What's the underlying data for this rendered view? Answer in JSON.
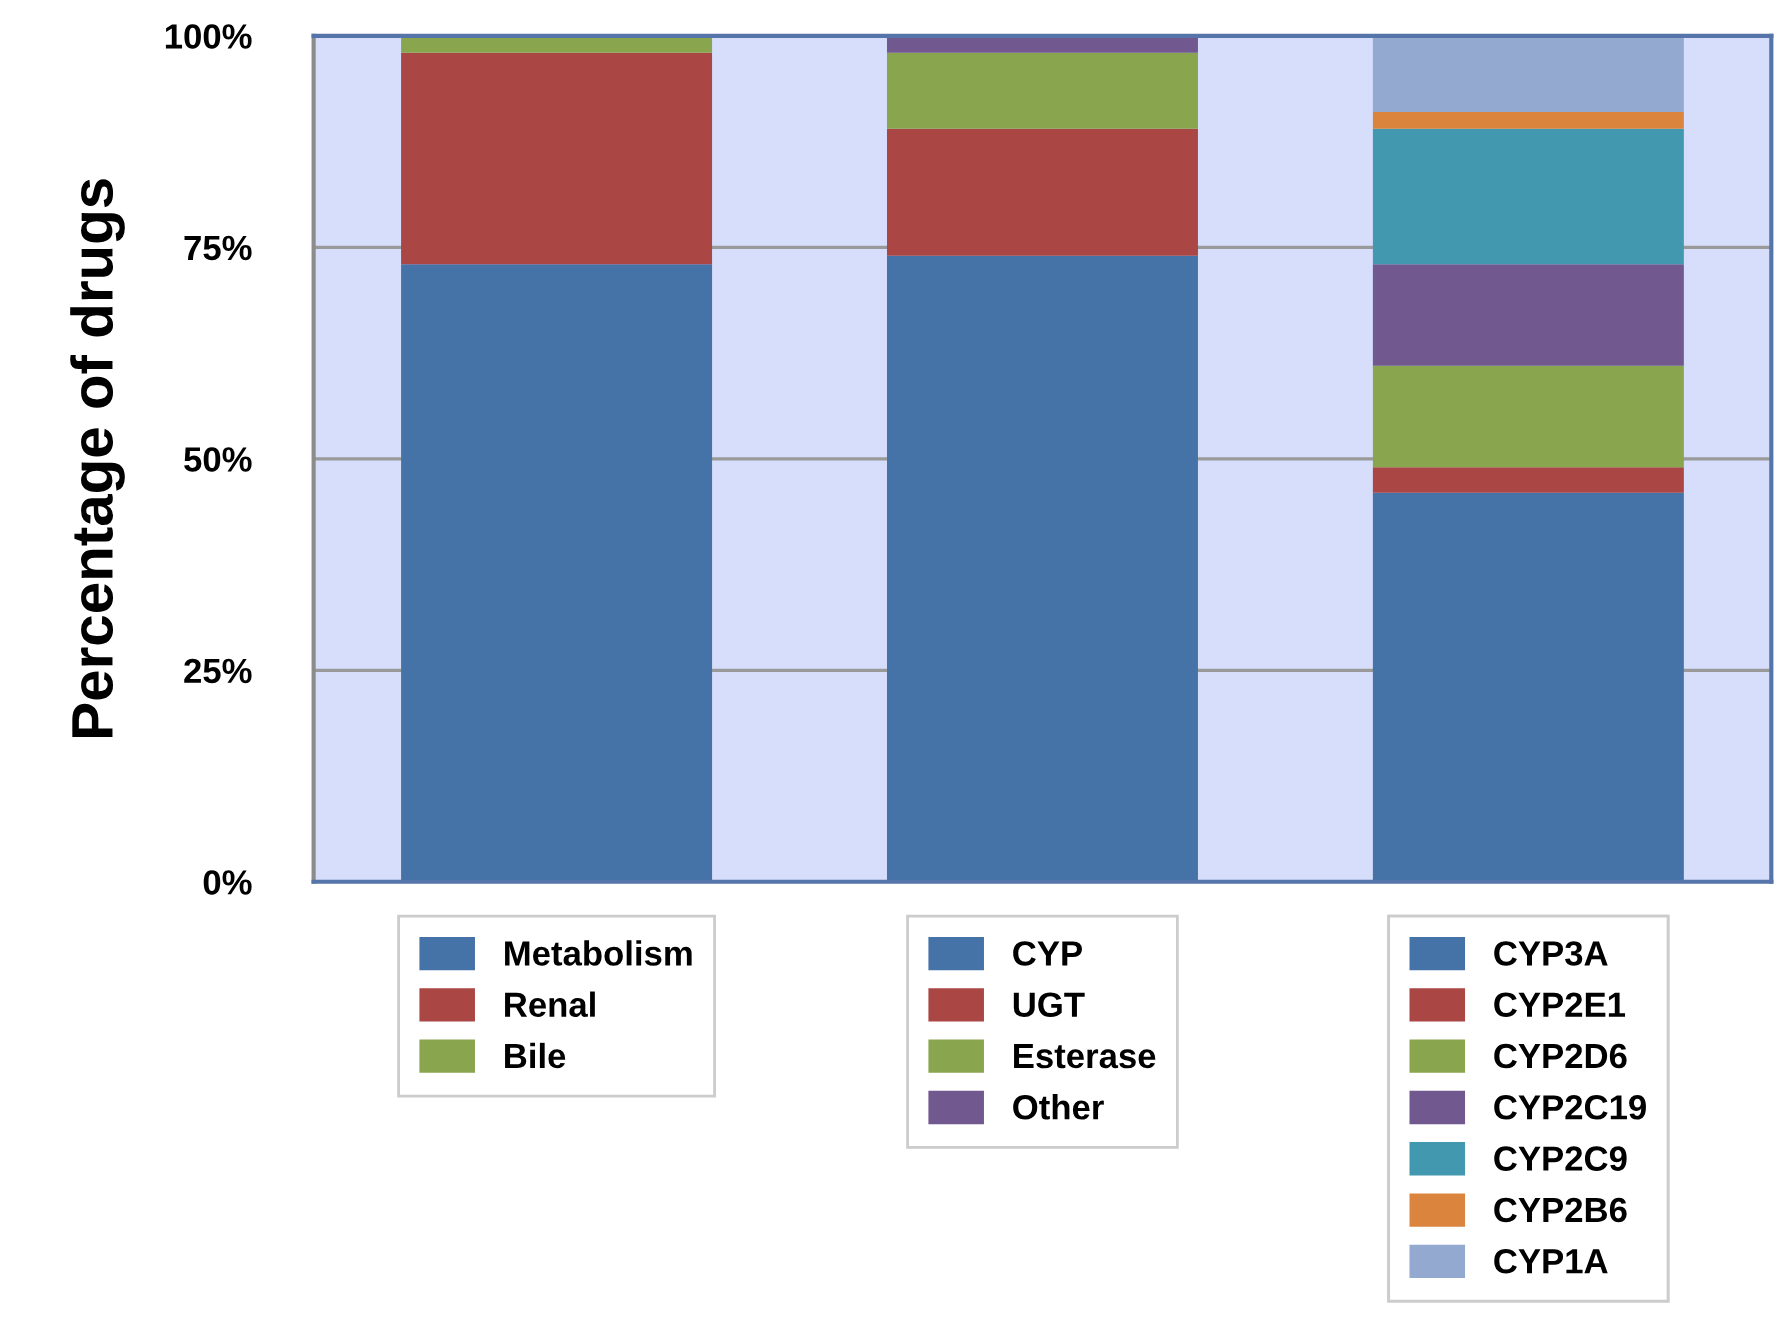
{
  "chart_data": {
    "type": "bar",
    "ylabel": "Percentage of drugs",
    "categories": [
      null,
      null,
      null
    ],
    "stacked": true,
    "series": [
      {
        "name": "Metabolism",
        "color": "#4572a7",
        "values": [
          73,
          null,
          null
        ]
      },
      {
        "name": "Renal",
        "color": "#aa4643",
        "values": [
          25,
          null,
          null
        ]
      },
      {
        "name": "Bile",
        "color": "#89a54e",
        "values": [
          2,
          null,
          null
        ]
      },
      {
        "name": "CYP",
        "color": "#4572a7",
        "values": [
          null,
          74,
          null
        ]
      },
      {
        "name": "UGT",
        "color": "#aa4643",
        "values": [
          null,
          15,
          null
        ]
      },
      {
        "name": "Esterase",
        "color": "#89a54e",
        "values": [
          null,
          9,
          null
        ]
      },
      {
        "name": "Other",
        "color": "#71588f",
        "values": [
          null,
          2,
          null
        ]
      },
      {
        "name": "CYP3A",
        "color": "#4572a7",
        "values": [
          null,
          null,
          46
        ]
      },
      {
        "name": "CYP2E1",
        "color": "#aa4643",
        "values": [
          null,
          null,
          3
        ]
      },
      {
        "name": "CYP2D6",
        "color": "#89a54e",
        "values": [
          null,
          null,
          12
        ]
      },
      {
        "name": "CYP2C19",
        "color": "#71588f",
        "values": [
          null,
          null,
          12
        ]
      },
      {
        "name": "CYP2C9",
        "color": "#4198af",
        "values": [
          null,
          null,
          16
        ]
      },
      {
        "name": "CYP2B6",
        "color": "#db843d",
        "values": [
          null,
          null,
          2
        ]
      },
      {
        "name": "CYP1A",
        "color": "#93a9cf",
        "values": [
          null,
          null,
          9
        ]
      }
    ],
    "ylim": [
      0,
      100
    ],
    "yticks": [
      {
        "value": 0,
        "label": "0%"
      },
      {
        "value": 25,
        "label": "25%"
      },
      {
        "value": 50,
        "label": "50%"
      },
      {
        "value": 75,
        "label": "75%"
      },
      {
        "value": 100,
        "label": "100%"
      }
    ],
    "grid": "y",
    "legend": "bottom",
    "tick_labels": "y"
  }
}
